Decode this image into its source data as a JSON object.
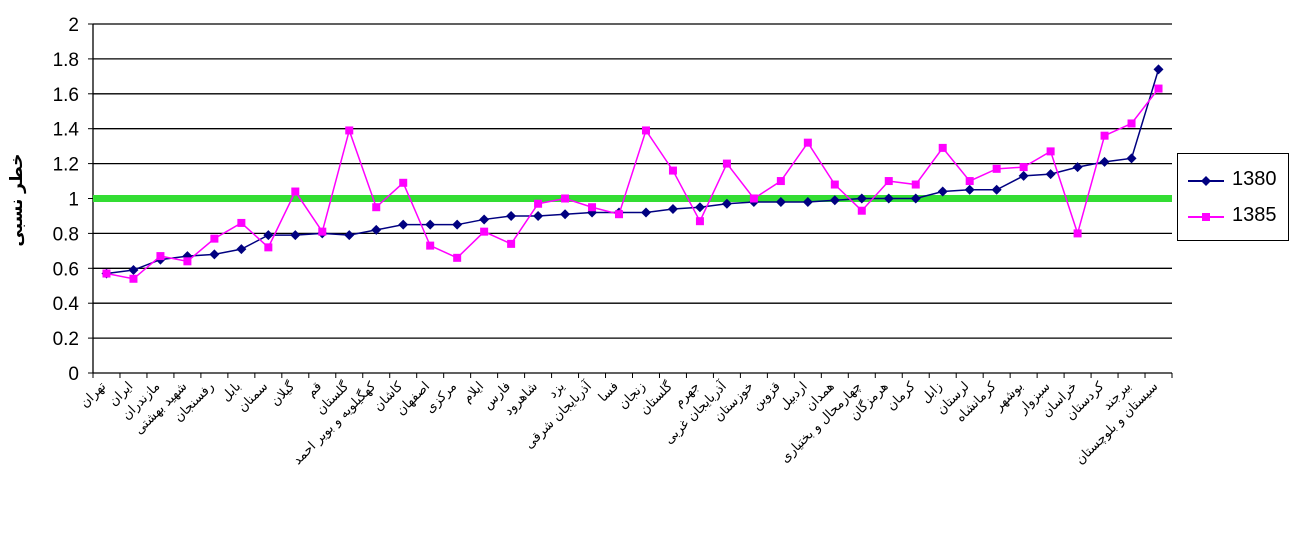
{
  "chart_data": {
    "type": "line",
    "title": "",
    "xlabel": "",
    "ylabel": "خطر نسبی",
    "ylim": [
      0,
      2
    ],
    "yticks": [
      "0",
      "0.2",
      "0.4",
      "0.6",
      "0.8",
      "1",
      "1.2",
      "1.4",
      "1.6",
      "1.8",
      "2"
    ],
    "grid": true,
    "legend_position": "right",
    "reference_line": {
      "value": 1,
      "color": "#33dd33"
    },
    "categories": [
      "تهران",
      "ایران",
      "مازندران",
      "شهید بهشتی",
      "رفسنجان",
      "بابل",
      "سمنان",
      "گیلان",
      "قم",
      "گلستان",
      "کهگیلویه و بویر احمد",
      "کاشان",
      "اصفهان",
      "مرکزی",
      "ایلام",
      "فارس",
      "شاهرود",
      "یزد",
      "آذربایجان شرقی",
      "فسا",
      "زنجان",
      "گلستان",
      "جهرم",
      "آذربایجان غربی",
      "خوزستان",
      "قزوین",
      "اردبیل",
      "همدان",
      "چهارمحال و بختیاری",
      "هرمزگان",
      "کرمان",
      "زابل",
      "لرستان",
      "کرمانشاه",
      "بوشهر",
      "سبزوار",
      "خراسان",
      "کردستان",
      "بیرجند",
      "سیستان و بلوچستان"
    ],
    "series": [
      {
        "name": "1380",
        "color": "#000080",
        "marker": "diamond",
        "values": [
          0.57,
          0.59,
          0.65,
          0.67,
          0.68,
          0.71,
          0.79,
          0.79,
          0.8,
          0.79,
          0.82,
          0.85,
          0.85,
          0.85,
          0.88,
          0.9,
          0.9,
          0.91,
          0.92,
          0.92,
          0.92,
          0.94,
          0.95,
          0.97,
          0.98,
          0.98,
          0.98,
          0.99,
          1.0,
          1.0,
          1.0,
          1.04,
          1.05,
          1.05,
          1.13,
          1.14,
          1.18,
          1.21,
          1.23,
          1.74
        ]
      },
      {
        "name": "1385",
        "color": "#ff00ff",
        "marker": "square",
        "values": [
          0.57,
          0.54,
          0.67,
          0.64,
          0.77,
          0.86,
          0.72,
          1.04,
          0.81,
          1.39,
          0.95,
          1.09,
          0.73,
          0.66,
          0.81,
          0.74,
          0.97,
          1.0,
          0.95,
          0.91,
          1.39,
          1.16,
          0.87,
          1.2,
          1.0,
          1.1,
          1.32,
          1.08,
          0.93,
          1.1,
          1.08,
          1.29,
          1.1,
          1.17,
          1.18,
          1.27,
          0.8,
          1.36,
          1.43,
          1.63
        ]
      }
    ]
  },
  "legend": {
    "items": [
      {
        "label": "1380"
      },
      {
        "label": "1385"
      }
    ]
  }
}
